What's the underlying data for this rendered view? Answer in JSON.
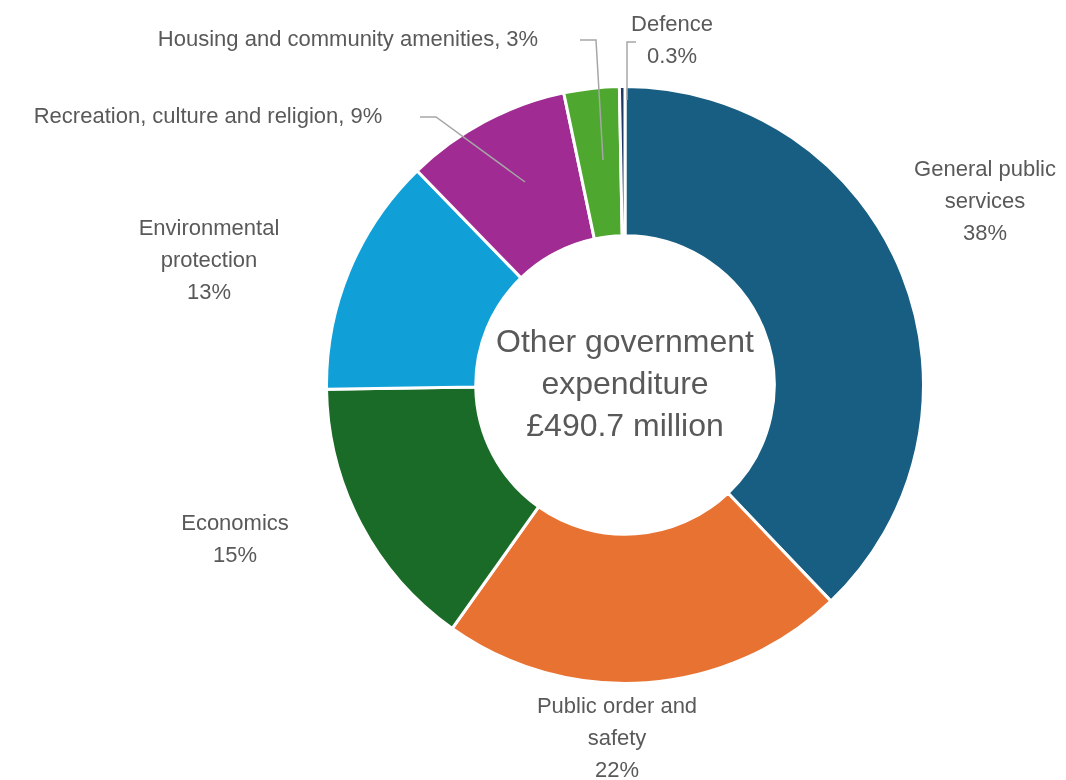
{
  "chart_data": {
    "type": "donut",
    "title": "Other government expenditure £490.7 million",
    "categories": [
      "General public services",
      "Public order and safety",
      "Economics",
      "Environmental protection",
      "Recreation, culture and religion",
      "Housing and community amenities",
      "Defence"
    ],
    "values": [
      38,
      22,
      15,
      13,
      9,
      3,
      0.3
    ],
    "value_labels": [
      "38%",
      "22%",
      "15%",
      "13%",
      "9%",
      "3%",
      "0.3%"
    ],
    "colors": [
      "#175e82",
      "#e87232",
      "#1a6b27",
      "#119fd8",
      "#a02b93",
      "#4ea72e",
      "#1f3864"
    ],
    "legend": false
  }
}
